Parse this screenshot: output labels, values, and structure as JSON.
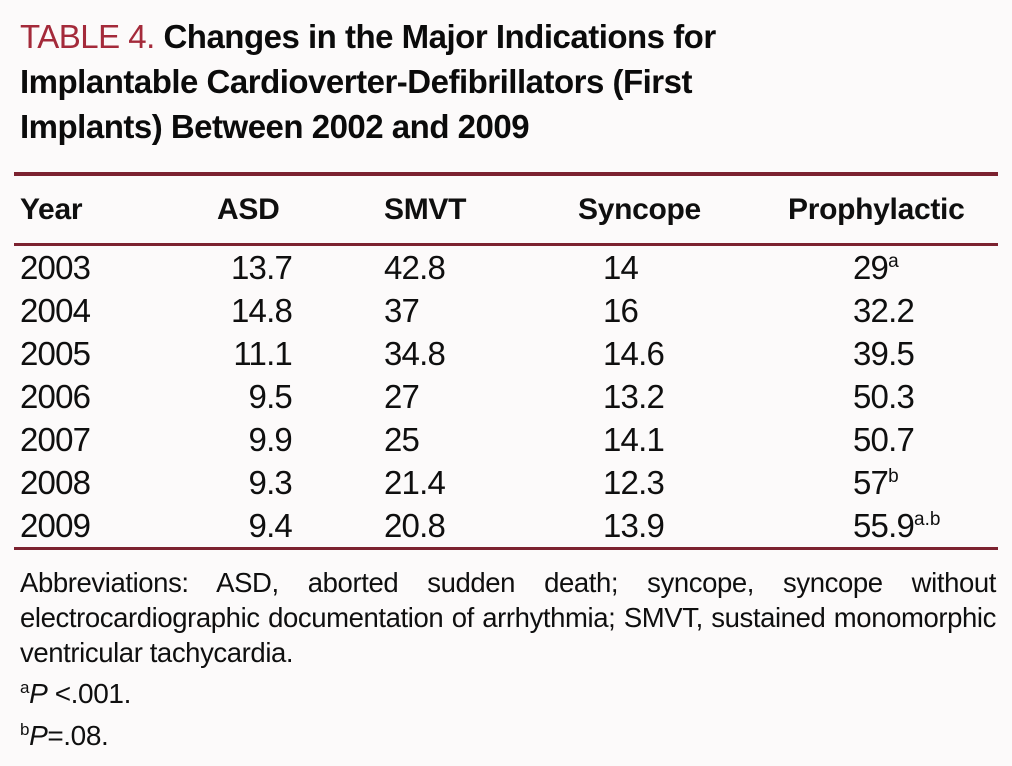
{
  "page": {
    "background": "#fcfafa",
    "accent_red": "#a42a3a",
    "rule_color": "#7c2230",
    "text_color": "#0f0f0f"
  },
  "title": {
    "label": "TABLE 4.",
    "lines": [
      "Changes in the Major Indications for",
      "Implantable Cardioverter-Defibrillators (First",
      "Implants) Between 2002 and 2009"
    ]
  },
  "table": {
    "columns": [
      "Year",
      "ASD",
      "SMVT",
      "Syncope",
      "Prophylactic"
    ],
    "rows": [
      {
        "year": "2003",
        "asd": "13.7",
        "smvt": "42.8",
        "syncope": "14",
        "prophylactic": {
          "value": "29",
          "sup": "a"
        }
      },
      {
        "year": "2004",
        "asd": "14.8",
        "smvt": "37",
        "syncope": "16",
        "prophylactic": {
          "value": "32.2",
          "sup": ""
        }
      },
      {
        "year": "2005",
        "asd": "11.1",
        "smvt": "34.8",
        "syncope": "14.6",
        "prophylactic": {
          "value": "39.5",
          "sup": ""
        }
      },
      {
        "year": "2006",
        "asd": "9.5",
        "smvt": "27",
        "syncope": "13.2",
        "prophylactic": {
          "value": "50.3",
          "sup": ""
        }
      },
      {
        "year": "2007",
        "asd": "9.9",
        "smvt": "25",
        "syncope": "14.1",
        "prophylactic": {
          "value": "50.7",
          "sup": ""
        }
      },
      {
        "year": "2008",
        "asd": "9.3",
        "smvt": "21.4",
        "syncope": "12.3",
        "prophylactic": {
          "value": "57",
          "sup": "b"
        }
      },
      {
        "year": "2009",
        "asd": "9.4",
        "smvt": "20.8",
        "syncope": "13.9",
        "prophylactic": {
          "value": "55.9",
          "sup": "a.b"
        }
      }
    ]
  },
  "notes": {
    "abbreviations": "Abbreviations: ASD, aborted sudden death; syncope, syncope without electrocardiographic documentation of arrhythmia; SMVT, sustained monomorphic ventricular tachycardia.",
    "footnotes": [
      {
        "marker": "a",
        "p": "P",
        "text": " <.001."
      },
      {
        "marker": "b",
        "p": "P",
        "text": "=.08."
      }
    ]
  },
  "chart_data": {
    "type": "table",
    "title": "TABLE 4. Changes in the Major Indications for Implantable Cardioverter-Defibrillators (First Implants) Between 2002 and 2009",
    "columns": [
      "Year",
      "ASD",
      "SMVT",
      "Syncope",
      "Prophylactic"
    ],
    "rows": [
      [
        2003,
        13.7,
        42.8,
        14,
        29
      ],
      [
        2004,
        14.8,
        37,
        16,
        32.2
      ],
      [
        2005,
        11.1,
        34.8,
        14.6,
        39.5
      ],
      [
        2006,
        9.5,
        27,
        13.2,
        50.3
      ],
      [
        2007,
        9.9,
        25,
        14.1,
        50.7
      ],
      [
        2008,
        9.3,
        21.4,
        12.3,
        57
      ],
      [
        2009,
        9.4,
        20.8,
        13.9,
        55.9
      ]
    ],
    "cell_superscripts": {
      "2003.Prophylactic": "a",
      "2008.Prophylactic": "b",
      "2009.Prophylactic": "a.b"
    },
    "footnotes": {
      "a": "P <.001.",
      "b": "P=.08."
    }
  }
}
